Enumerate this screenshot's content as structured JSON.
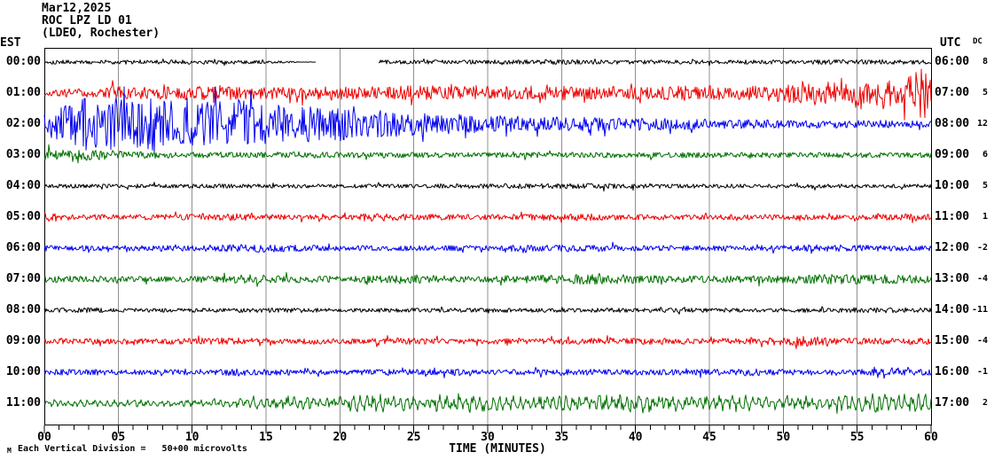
{
  "header": {
    "date": "Mar12,2025",
    "station": "ROC LPZ LD 01",
    "network": "(LDEO, Rochester)"
  },
  "axes": {
    "left_label": "EST",
    "right_label": "UTC",
    "dc_label": "DC",
    "x_label": "TIME (MINUTES)"
  },
  "footer": {
    "mark": "M",
    "scale_note": "Each Vertical Division =   50+00 microvolts"
  },
  "colors": {
    "black": "#000000",
    "red": "#ee0000",
    "blue": "#0000ee",
    "green": "#007000",
    "grid": "#909090",
    "frame": "#000000"
  },
  "chart_data": {
    "type": "line",
    "title": "Helicorder ROC LPZ LD 01, Mar12,2025, LDEO Rochester",
    "xlabel": "TIME (MINUTES)",
    "x_range": [
      0,
      60
    ],
    "x_major_tick": 5,
    "x_minor_tick": 1,
    "x_tick_labels": [
      "00",
      "05",
      "10",
      "15",
      "20",
      "25",
      "30",
      "35",
      "40",
      "45",
      "50",
      "55",
      "60"
    ],
    "grid": "vertical gray lines every 5 minutes",
    "legend": "none",
    "rows": [
      {
        "est": "00:00",
        "utc": "06:00",
        "dc": "8",
        "color_name": "black",
        "seed": 101,
        "gap_minutes": [
          18.4,
          22.6
        ],
        "envelope": [
          [
            0,
            2.3
          ],
          [
            8,
            2.5
          ],
          [
            13,
            2.3
          ],
          [
            15,
            1.6
          ],
          [
            16.5,
            1.0
          ],
          [
            17.3,
            0.3
          ],
          [
            18.4,
            0.2
          ],
          [
            22.6,
            2.3
          ],
          [
            30,
            2.4
          ],
          [
            36,
            2.8
          ],
          [
            40,
            2.3
          ],
          [
            46,
            2.2
          ],
          [
            52,
            2.6
          ],
          [
            56,
            2.8
          ],
          [
            60,
            2.3
          ]
        ]
      },
      {
        "est": "01:00",
        "utc": "07:00",
        "dc": "5",
        "color_name": "red",
        "seed": 202,
        "envelope": [
          [
            0,
            4
          ],
          [
            2,
            5
          ],
          [
            4,
            4.5
          ],
          [
            4.6,
            8
          ],
          [
            6,
            6.5
          ],
          [
            8,
            7
          ],
          [
            10,
            8
          ],
          [
            12,
            9
          ],
          [
            13,
            7
          ],
          [
            15,
            6.5
          ],
          [
            17,
            7.5
          ],
          [
            19,
            7
          ],
          [
            21,
            8
          ],
          [
            23,
            7
          ],
          [
            25,
            8.5
          ],
          [
            27,
            7
          ],
          [
            29,
            9
          ],
          [
            31,
            7.5
          ],
          [
            33,
            7
          ],
          [
            35,
            8
          ],
          [
            37,
            7
          ],
          [
            39,
            8
          ],
          [
            41,
            7
          ],
          [
            43,
            8.5
          ],
          [
            45,
            9
          ],
          [
            47,
            7.5
          ],
          [
            49,
            9
          ],
          [
            51,
            12
          ],
          [
            52,
            10
          ],
          [
            53,
            13
          ],
          [
            54,
            11
          ],
          [
            55,
            15
          ],
          [
            56,
            12
          ],
          [
            57,
            17
          ],
          [
            58,
            14
          ],
          [
            59,
            24
          ],
          [
            59.5,
            30
          ],
          [
            60,
            26
          ]
        ]
      },
      {
        "est": "02:00",
        "utc": "08:00",
        "dc": "12",
        "color_name": "blue",
        "seed": 303,
        "envelope": [
          [
            0,
            12
          ],
          [
            1,
            20
          ],
          [
            2,
            26
          ],
          [
            3,
            31
          ],
          [
            4,
            27
          ],
          [
            5,
            31
          ],
          [
            6,
            25
          ],
          [
            7,
            29
          ],
          [
            8,
            31
          ],
          [
            9,
            26
          ],
          [
            10,
            24
          ],
          [
            11,
            29
          ],
          [
            12,
            25
          ],
          [
            13,
            31
          ],
          [
            14,
            24
          ],
          [
            15,
            20
          ],
          [
            16,
            23
          ],
          [
            17,
            18
          ],
          [
            18,
            21
          ],
          [
            19,
            16
          ],
          [
            20,
            19
          ],
          [
            22,
            15
          ],
          [
            24,
            14
          ],
          [
            26,
            12
          ],
          [
            28,
            11
          ],
          [
            30,
            10
          ],
          [
            32,
            9
          ],
          [
            34,
            8.5
          ],
          [
            36,
            8
          ],
          [
            38,
            7.5
          ],
          [
            40,
            7
          ],
          [
            42,
            6.5
          ],
          [
            44,
            6
          ],
          [
            46,
            5.5
          ],
          [
            48,
            5
          ],
          [
            50,
            4.5
          ],
          [
            52,
            4.5
          ],
          [
            54,
            4
          ],
          [
            56,
            4.5
          ],
          [
            58,
            4
          ],
          [
            60,
            4
          ]
        ]
      },
      {
        "est": "03:00",
        "utc": "09:00",
        "dc": "6",
        "color_name": "green",
        "seed": 404,
        "envelope": [
          [
            0,
            7
          ],
          [
            1,
            6
          ],
          [
            2,
            5.5
          ],
          [
            3,
            6
          ],
          [
            4,
            5
          ],
          [
            5,
            4.5
          ],
          [
            7,
            4
          ],
          [
            9,
            3.5
          ],
          [
            12,
            3
          ],
          [
            15,
            3.2
          ],
          [
            17,
            4
          ],
          [
            19,
            3.4
          ],
          [
            22,
            3
          ],
          [
            26,
            3
          ],
          [
            30,
            3
          ],
          [
            34,
            3.2
          ],
          [
            38,
            3
          ],
          [
            42,
            3
          ],
          [
            46,
            3.2
          ],
          [
            50,
            3
          ],
          [
            54,
            3
          ],
          [
            58,
            3
          ],
          [
            60,
            3
          ]
        ]
      },
      {
        "est": "04:00",
        "utc": "10:00",
        "dc": "5",
        "color_name": "black",
        "seed": 505,
        "envelope": [
          [
            0,
            2.3
          ],
          [
            6,
            2.3
          ],
          [
            12,
            2.4
          ],
          [
            18,
            2.2
          ],
          [
            24,
            2.3
          ],
          [
            30,
            2.6
          ],
          [
            34,
            3
          ],
          [
            38,
            3
          ],
          [
            41,
            2.5
          ],
          [
            46,
            2.3
          ],
          [
            52,
            2.3
          ],
          [
            58,
            2.3
          ],
          [
            60,
            2.3
          ]
        ]
      },
      {
        "est": "05:00",
        "utc": "11:00",
        "dc": "1",
        "color_name": "red",
        "seed": 606,
        "envelope": [
          [
            0,
            5.5
          ],
          [
            1,
            4.5
          ],
          [
            2,
            3.2
          ],
          [
            5,
            3
          ],
          [
            9,
            3.4
          ],
          [
            13,
            4
          ],
          [
            15,
            3.2
          ],
          [
            19,
            3
          ],
          [
            23,
            4
          ],
          [
            25,
            3.5
          ],
          [
            29,
            3
          ],
          [
            33,
            3.6
          ],
          [
            36,
            4
          ],
          [
            39,
            3.2
          ],
          [
            44,
            3
          ],
          [
            49,
            3.2
          ],
          [
            54,
            3
          ],
          [
            58,
            3.4
          ],
          [
            60,
            3.5
          ]
        ]
      },
      {
        "est": "06:00",
        "utc": "12:00",
        "dc": "-2",
        "color_name": "blue",
        "seed": 707,
        "envelope": [
          [
            0,
            3
          ],
          [
            4,
            3
          ],
          [
            9,
            3.2
          ],
          [
            12,
            4
          ],
          [
            14,
            5
          ],
          [
            16,
            4
          ],
          [
            19,
            3.2
          ],
          [
            24,
            3
          ],
          [
            29,
            3
          ],
          [
            34,
            3.8
          ],
          [
            37,
            4
          ],
          [
            40,
            3.2
          ],
          [
            44,
            3
          ],
          [
            49,
            3.2
          ],
          [
            53,
            4
          ],
          [
            55,
            4
          ],
          [
            58,
            3.2
          ],
          [
            60,
            3
          ]
        ]
      },
      {
        "est": "07:00",
        "utc": "13:00",
        "dc": "-4",
        "color_name": "green",
        "seed": 808,
        "envelope": [
          [
            0,
            4.2
          ],
          [
            3,
            3.4
          ],
          [
            8,
            3.2
          ],
          [
            12,
            3.6
          ],
          [
            14,
            5.5
          ],
          [
            15,
            6
          ],
          [
            16,
            4.2
          ],
          [
            19,
            3.6
          ],
          [
            23,
            4
          ],
          [
            25,
            5
          ],
          [
            27,
            4
          ],
          [
            30,
            3.6
          ],
          [
            34,
            4.6
          ],
          [
            37,
            6
          ],
          [
            40,
            5
          ],
          [
            42,
            4
          ],
          [
            45,
            3.6
          ],
          [
            49,
            4.2
          ],
          [
            52,
            5
          ],
          [
            55,
            6
          ],
          [
            57,
            5
          ],
          [
            60,
            4.2
          ]
        ]
      },
      {
        "est": "08:00",
        "utc": "14:00",
        "dc": "-11",
        "color_name": "black",
        "seed": 909,
        "envelope": [
          [
            0,
            2.3
          ],
          [
            3,
            3
          ],
          [
            5,
            2.3
          ],
          [
            10,
            2.4
          ],
          [
            15,
            2.6
          ],
          [
            20,
            2.3
          ],
          [
            25,
            2.3
          ],
          [
            30,
            2.5
          ],
          [
            35,
            2.3
          ],
          [
            40,
            2.6
          ],
          [
            45,
            2.3
          ],
          [
            50,
            2.3
          ],
          [
            54,
            3
          ],
          [
            57,
            3
          ],
          [
            60,
            2.6
          ]
        ]
      },
      {
        "est": "09:00",
        "utc": "15:00",
        "dc": "-4",
        "color_name": "red",
        "seed": 1010,
        "envelope": [
          [
            0,
            3
          ],
          [
            5,
            3
          ],
          [
            9,
            3.4
          ],
          [
            13,
            4
          ],
          [
            16,
            3.2
          ],
          [
            20,
            3
          ],
          [
            24,
            3.6
          ],
          [
            28,
            3
          ],
          [
            33,
            3.2
          ],
          [
            38,
            3.6
          ],
          [
            41,
            4
          ],
          [
            44,
            3.2
          ],
          [
            48,
            3.4
          ],
          [
            51,
            6
          ],
          [
            53,
            5
          ],
          [
            55,
            3.4
          ],
          [
            57,
            4
          ],
          [
            60,
            3.6
          ]
        ]
      },
      {
        "est": "10:00",
        "utc": "16:00",
        "dc": "-1",
        "color_name": "blue",
        "seed": 1111,
        "envelope": [
          [
            0,
            3
          ],
          [
            3,
            3.6
          ],
          [
            6,
            3
          ],
          [
            10,
            3.2
          ],
          [
            13,
            4
          ],
          [
            15,
            3.4
          ],
          [
            19,
            3
          ],
          [
            24,
            3.2
          ],
          [
            28,
            3.6
          ],
          [
            31,
            3
          ],
          [
            35,
            3.6
          ],
          [
            40,
            3
          ],
          [
            44,
            3.4
          ],
          [
            48,
            4
          ],
          [
            51,
            3.2
          ],
          [
            55,
            3.6
          ],
          [
            58,
            4
          ],
          [
            60,
            3.2
          ]
        ]
      },
      {
        "est": "11:00",
        "utc": "17:00",
        "dc": "2",
        "color_name": "green",
        "seed": 1212,
        "osc_period_min": 0.45,
        "envelope": [
          [
            0,
            3.4
          ],
          [
            4,
            3.4
          ],
          [
            8,
            3.4
          ],
          [
            11,
            3.6
          ],
          [
            13,
            4.4
          ],
          [
            15,
            6
          ],
          [
            17,
            7
          ],
          [
            19,
            6
          ],
          [
            21,
            8
          ],
          [
            23,
            9
          ],
          [
            25,
            7
          ],
          [
            27,
            8
          ],
          [
            29,
            9
          ],
          [
            31,
            8
          ],
          [
            33,
            7
          ],
          [
            35,
            8
          ],
          [
            37,
            9.5
          ],
          [
            39,
            8
          ],
          [
            41,
            9.5
          ],
          [
            43,
            8
          ],
          [
            45,
            7
          ],
          [
            47,
            8
          ],
          [
            49,
            7
          ],
          [
            51,
            7
          ],
          [
            53,
            7.5
          ],
          [
            55,
            8
          ],
          [
            57,
            9.5
          ],
          [
            59,
            8.5
          ],
          [
            60,
            8.5
          ]
        ]
      }
    ]
  }
}
